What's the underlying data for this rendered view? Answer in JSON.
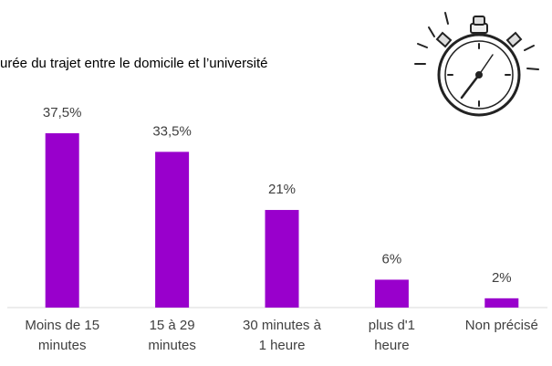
{
  "chart_data": {
    "type": "bar",
    "title": "urée du trajet entre le domicile et l’université",
    "categories": [
      [
        "Moins de 15",
        "minutes"
      ],
      [
        "15 à 29",
        "minutes"
      ],
      [
        "30 minutes à",
        "1 heure"
      ],
      [
        "plus d'1",
        "heure"
      ],
      [
        "Non précisé"
      ]
    ],
    "values": [
      37.5,
      33.5,
      21,
      6,
      2
    ],
    "value_labels": [
      "37,5%",
      "33,5%",
      "21%",
      "6%",
      "2%"
    ],
    "color": "#9900cc"
  }
}
